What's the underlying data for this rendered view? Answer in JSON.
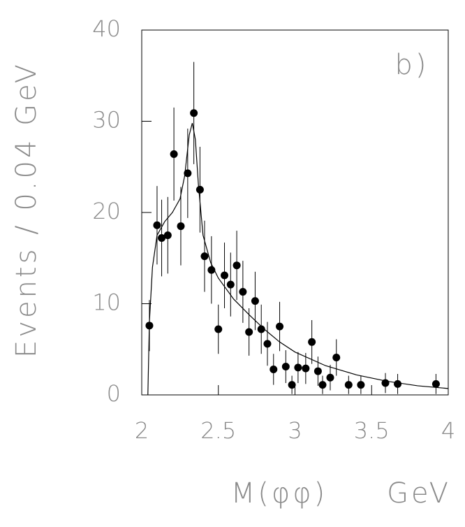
{
  "chart_data": {
    "type": "scatter",
    "ylabel": "Events / 0.04 GeV",
    "xlabel": "M(φφ)",
    "xunit": "GeV",
    "annotation": "b)",
    "xlim": [
      2,
      4
    ],
    "xticks": [
      2,
      2.5,
      3,
      3.5,
      4
    ],
    "ylim": [
      0,
      40
    ],
    "yticks": [
      0,
      10,
      20,
      30,
      40
    ],
    "color": "#000000",
    "x": [
      2.05,
      2.1,
      2.13,
      2.17,
      2.21,
      2.255,
      2.3,
      2.34,
      2.38,
      2.41,
      2.455,
      2.5,
      2.54,
      2.58,
      2.62,
      2.66,
      2.7,
      2.74,
      2.78,
      2.82,
      2.86,
      2.9,
      2.94,
      2.98,
      3.02,
      3.07,
      3.11,
      3.15,
      3.18,
      3.23,
      3.27,
      3.35,
      3.43,
      3.59,
      3.67,
      3.92
    ],
    "values": [
      7.6,
      18.6,
      17.2,
      17.5,
      26.4,
      18.5,
      24.3,
      30.9,
      22.5,
      15.2,
      13.7,
      7.2,
      13.1,
      12.1,
      14.2,
      11.3,
      6.9,
      10.3,
      7.2,
      5.6,
      2.8,
      7.5,
      3.1,
      1.1,
      3.0,
      2.9,
      5.8,
      2.6,
      1.1,
      1.9,
      4.1,
      1.1,
      1.1,
      1.3,
      1.2,
      1.2
    ],
    "errors": [
      2.8,
      4.3,
      4.2,
      4.2,
      5.1,
      4.3,
      4.9,
      5.6,
      4.7,
      3.9,
      3.7,
      2.7,
      3.6,
      3.5,
      3.8,
      3.4,
      2.6,
      3.2,
      2.7,
      2.4,
      1.7,
      2.7,
      1.8,
      1.0,
      1.7,
      1.7,
      2.4,
      1.6,
      1.0,
      1.4,
      2.0,
      1.0,
      1.0,
      1.1,
      1.1,
      1.1
    ],
    "fit": {
      "x": [
        2.04,
        2.05,
        2.07,
        2.1,
        2.15,
        2.2,
        2.25,
        2.28,
        2.31,
        2.33,
        2.35,
        2.37,
        2.4,
        2.45,
        2.5,
        2.6,
        2.7,
        2.8,
        2.9,
        3.0,
        3.2,
        3.4,
        3.6,
        3.8,
        4.0
      ],
      "values": [
        0,
        8,
        14,
        17.5,
        19,
        20,
        21.5,
        24,
        28.5,
        29.8,
        28,
        23,
        17.5,
        14.5,
        12.8,
        10.5,
        8.8,
        7.2,
        5.8,
        4.7,
        3.2,
        2.2,
        1.5,
        1.0,
        0.7
      ]
    }
  }
}
